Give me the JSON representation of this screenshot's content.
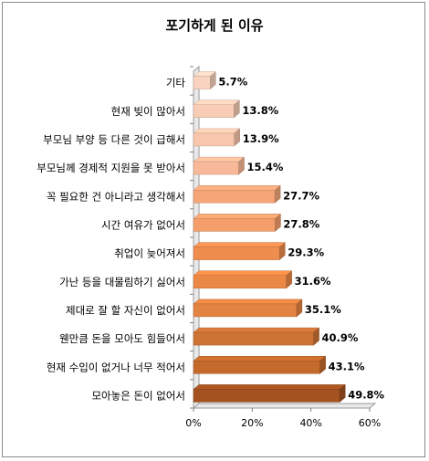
{
  "chart_data": {
    "type": "bar",
    "orientation": "horizontal",
    "title": "포기하게 된 이유",
    "categories": [
      "기타",
      "현재 빚이 많아서",
      "부모님 부양 등 다른 것이 급해서",
      "부모님께 경제적 지원을 못 받아서",
      "꼭 필요한 건 아니라고 생각해서",
      "시간 여유가 없어서",
      "취업이 늦어져서",
      "가난 등을 대물림하기 싫어서",
      "제대로 잘 할 자신이 없어서",
      "웬만큼 돈을 모아도 힘들어서",
      "현재 수입이 없거나 너무 적어서",
      "모아놓은 돈이 없어서"
    ],
    "values": [
      5.7,
      13.8,
      13.9,
      15.4,
      27.7,
      27.8,
      29.3,
      31.6,
      35.1,
      40.9,
      43.1,
      49.8
    ],
    "value_labels": [
      "5.7%",
      "13.8%",
      "13.9%",
      "15.4%",
      "27.7%",
      "27.8%",
      "29.3%",
      "31.6%",
      "35.1%",
      "40.9%",
      "43.1%",
      "49.8%"
    ],
    "xlim": [
      0,
      60
    ],
    "x_ticks": [
      "0%",
      "20%",
      "40%",
      "60%"
    ],
    "grid": false,
    "legend": "none",
    "bar_colors": [
      "#f9d2c0",
      "#f8ccb5",
      "#f8c6ac",
      "#f7b999",
      "#f5a578",
      "#f49e6b",
      "#ee8d4e",
      "#eb8846",
      "#e38342",
      "#cd7334",
      "#c46a2d",
      "#a4521f"
    ]
  }
}
